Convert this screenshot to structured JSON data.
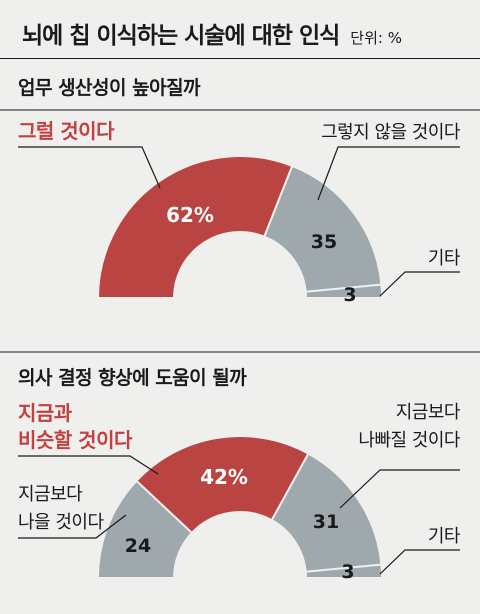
{
  "title": "뇌에 칩 이식하는 시술에 대한 인식",
  "unit": "단위: %",
  "colors": {
    "red": "#b94441",
    "gray": "#9ea8ad",
    "separator": "#efefed"
  },
  "chart_data": [
    {
      "type": "pie",
      "title": "업무 생산성이 높아질까",
      "slices": [
        {
          "label": "그럴 것이다",
          "value": 62,
          "display": "62%"
        },
        {
          "label": "그렇지 않을 것이다",
          "value": 35,
          "display": "35"
        },
        {
          "label": "기타",
          "value": 3,
          "display": "3"
        }
      ]
    },
    {
      "type": "pie",
      "title": "의사 결정 향상에 도움이 될까",
      "slices": [
        {
          "label": "지금보다 나을 것이다",
          "value": 24,
          "display": "24"
        },
        {
          "label": "지금과 비슷할 것이다",
          "value": 42,
          "display": "42%"
        },
        {
          "label": "지금보다 나빠질 것이다",
          "value": 31,
          "display": "31"
        },
        {
          "label": "기타",
          "value": 3,
          "display": "3"
        }
      ]
    }
  ],
  "labels": {
    "c1": {
      "a1": "그럴 것이다",
      "b1": "그렇지 않을 것이다",
      "c1": "기타"
    },
    "c2": {
      "a1": "지금보다",
      "a2": "나을 것이다",
      "b1": "지금과",
      "b2": "비슷할 것이다",
      "c1": "지금보다",
      "c2": "나빠질 것이다",
      "d1": "기타"
    }
  }
}
